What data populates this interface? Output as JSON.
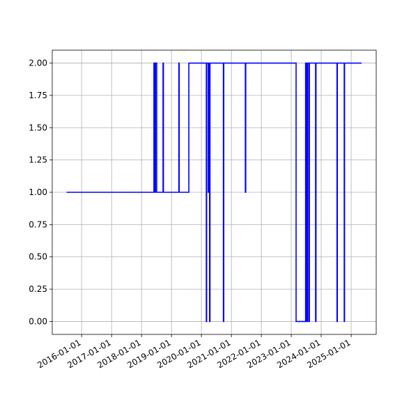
{
  "chart_data": {
    "type": "line",
    "step": "post",
    "x": [
      "2015-07-01",
      "2018-06-01",
      "2018-06-10",
      "2018-06-20",
      "2018-07-05",
      "2018-09-20",
      "2018-09-25",
      "2019-04-01",
      "2019-04-05",
      "2019-08-01",
      "2020-03-01",
      "2020-03-05",
      "2020-03-25",
      "2020-04-01",
      "2020-04-10",
      "2020-04-15",
      "2020-09-25",
      "2020-09-30",
      "2021-06-20",
      "2021-06-25",
      "2023-03-01",
      "2023-06-25",
      "2023-07-01",
      "2023-07-05",
      "2023-07-15",
      "2023-07-20",
      "2023-08-05",
      "2023-08-10",
      "2023-10-25",
      "2023-10-30",
      "2024-07-12",
      "2024-07-16",
      "2024-10-08",
      "2024-10-12",
      "2025-05-08"
    ],
    "series": [
      {
        "color": "#0000ff",
        "values": [
          1,
          2,
          1,
          2,
          1,
          2,
          1,
          2,
          1,
          2,
          0,
          2,
          1,
          2,
          0,
          2,
          0,
          2,
          1,
          2,
          0,
          2,
          0,
          2,
          0,
          2,
          0,
          2,
          0,
          2,
          0,
          2,
          0,
          2,
          2
        ]
      }
    ],
    "xlim": [
      "2015-01-08",
      "2025-11-02"
    ],
    "xticks": [
      "2016-01-01",
      "2017-01-01",
      "2018-01-01",
      "2019-01-01",
      "2020-01-01",
      "2021-01-01",
      "2022-01-01",
      "2023-01-01",
      "2024-01-01",
      "2025-01-01"
    ],
    "ylim": [
      -0.1,
      2.1
    ],
    "yticks": [
      {
        "value": 0,
        "label": "0.00"
      },
      {
        "value": 0.25,
        "label": "0.25"
      },
      {
        "value": 0.5,
        "label": "0.50"
      },
      {
        "value": 0.75,
        "label": "0.75"
      },
      {
        "value": 1,
        "label": "1.00"
      },
      {
        "value": 1.25,
        "label": "1.25"
      },
      {
        "value": 1.5,
        "label": "1.50"
      },
      {
        "value": 1.75,
        "label": "1.75"
      },
      {
        "value": 2,
        "label": "2.00"
      }
    ],
    "grid": true
  }
}
